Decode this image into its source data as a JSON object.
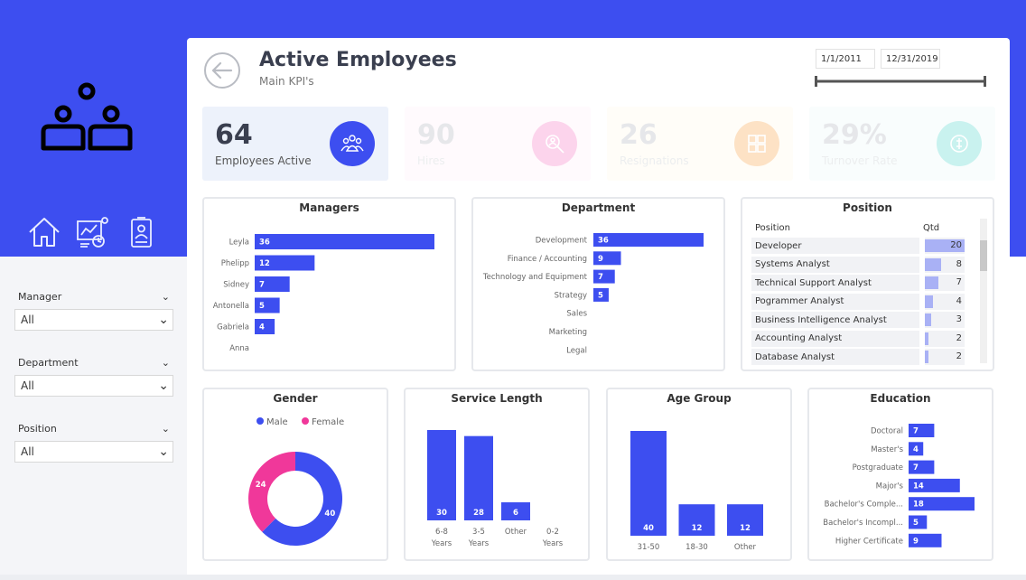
{
  "nav": {
    "items": [
      {
        "name": "home"
      },
      {
        "name": "analytics"
      },
      {
        "name": "profile"
      }
    ]
  },
  "filters": [
    {
      "label": "Manager",
      "value": "All"
    },
    {
      "label": "Department",
      "value": "All"
    },
    {
      "label": "Position",
      "value": "All"
    }
  ],
  "header": {
    "title": "Active Employees",
    "subtitle": "Main KPI's"
  },
  "date_range": {
    "start": "1/1/2011",
    "end": "12/31/2019"
  },
  "kpis": [
    {
      "value": "64",
      "label": "Employees Active",
      "active": true
    },
    {
      "value": "90",
      "label": "Hires",
      "active": false
    },
    {
      "value": "26",
      "label": "Resignations",
      "active": false
    },
    {
      "value": "29%",
      "label": "Turnover Rate",
      "active": false
    }
  ],
  "managers": {
    "title": "Managers",
    "categories": [
      "Leyla",
      "Phelipp",
      "Sidney",
      "Antonella",
      "Gabriela",
      "Anna"
    ],
    "values": [
      36,
      12,
      7,
      5,
      4,
      null
    ]
  },
  "department": {
    "title": "Department",
    "categories": [
      "Development",
      "Finance / Accounting",
      "Technology and Equipment",
      "Strategy",
      "Sales",
      "Marketing",
      "Legal"
    ],
    "values": [
      36,
      9,
      7,
      5,
      null,
      null,
      null
    ]
  },
  "position": {
    "title": "Position",
    "col_position": "Position",
    "col_qtd": "Qtd",
    "rows": [
      {
        "name": "Developer",
        "qtd": 20
      },
      {
        "name": "Systems Analyst",
        "qtd": 8
      },
      {
        "name": "Technical Support Analyst",
        "qtd": 7
      },
      {
        "name": "Pogrammer Analyst",
        "qtd": 4
      },
      {
        "name": "Business Intelligence Analyst",
        "qtd": 3
      },
      {
        "name": "Accounting Analyst",
        "qtd": 2
      },
      {
        "name": "Database Analyst",
        "qtd": 2
      }
    ]
  },
  "gender": {
    "title": "Gender",
    "legend": [
      {
        "name": "Male",
        "value": 40,
        "color": "#3d4ef0"
      },
      {
        "name": "Female",
        "value": 24,
        "color": "#f0389a"
      }
    ]
  },
  "service_length": {
    "title": "Service Length",
    "categories": [
      [
        "6-8",
        "Years"
      ],
      [
        "3-5",
        "Years"
      ],
      [
        "Other"
      ],
      [
        "0-2",
        "Years"
      ]
    ],
    "values": [
      30,
      28,
      6,
      null
    ]
  },
  "age_group": {
    "title": "Age Group",
    "categories": [
      "31-50",
      "18-30",
      "Other"
    ],
    "values": [
      40,
      12,
      12
    ]
  },
  "education": {
    "title": "Education",
    "categories": [
      "Doctoral",
      "Master's",
      "Postgraduate",
      "Major's",
      "Bachelor's Comple...",
      "Bachelor's Incompl...",
      "Higher Certificate"
    ],
    "values": [
      7,
      4,
      7,
      14,
      18,
      5,
      9
    ]
  },
  "colors": {
    "accent": "#3d4ef0",
    "female": "#f0389a",
    "panel_border": "#e6e8ec"
  }
}
